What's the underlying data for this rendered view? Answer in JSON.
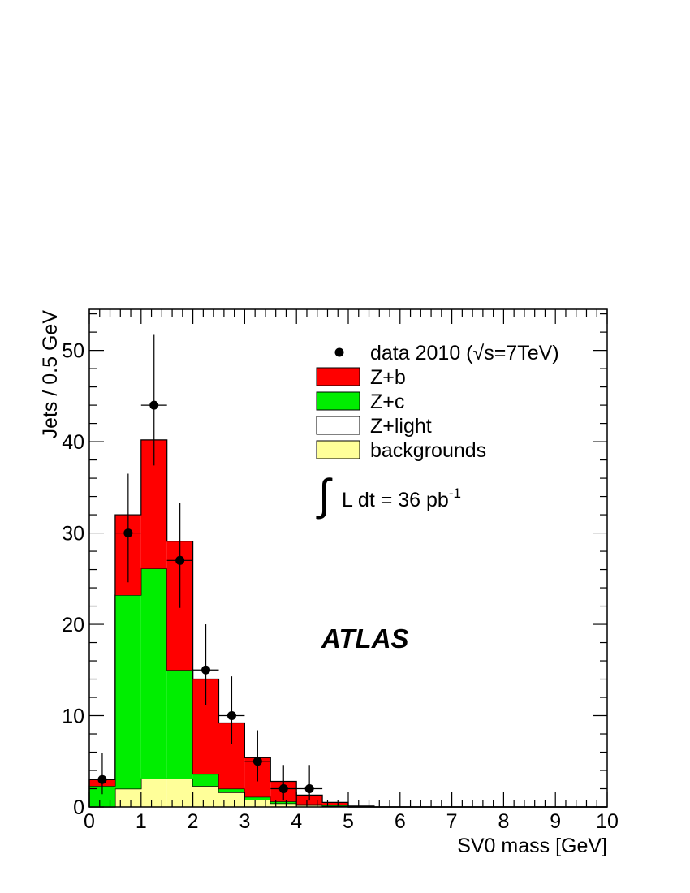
{
  "chart_data": {
    "type": "bar",
    "stacked": true,
    "xlabel": "SV0 mass [GeV]",
    "ylabel": "Jets / 0.5 GeV",
    "xlim": [
      0,
      10
    ],
    "ylim": [
      0,
      54.5
    ],
    "x_ticks": [
      "0",
      "1",
      "2",
      "3",
      "4",
      "5",
      "6",
      "7",
      "8",
      "9",
      "10"
    ],
    "y_ticks": [
      "0",
      "10",
      "20",
      "30",
      "40",
      "50"
    ],
    "bin_width": 0.5,
    "bin_edges": [
      0,
      0.5,
      1,
      1.5,
      2,
      2.5,
      3,
      3.5,
      4,
      4.5,
      5,
      5.5,
      6,
      6.5,
      7,
      7.5,
      8,
      8.5,
      9,
      9.5,
      10
    ],
    "colors": {
      "zb": "#ff0000",
      "zc": "#00ee00",
      "zlight": "#ffffff",
      "bkg": "#ffff99",
      "data": "#000000"
    },
    "series": [
      {
        "key": "bkg",
        "name": "backgrounds",
        "values": [
          0,
          2.0,
          3.1,
          3.1,
          2.3,
          1.6,
          0.8,
          0.4,
          0.2,
          0.1,
          0,
          0,
          0,
          0,
          0,
          0,
          0,
          0,
          0,
          0
        ]
      },
      {
        "key": "zlight",
        "name": "Z+light",
        "values": [
          0,
          0,
          0,
          0,
          0,
          0,
          0,
          0,
          0,
          0,
          0,
          0,
          0,
          0,
          0,
          0,
          0,
          0,
          0,
          0
        ]
      },
      {
        "key": "zc",
        "name": "Z+c",
        "values": [
          2.3,
          21.2,
          23.0,
          11.9,
          1.3,
          0.4,
          0.3,
          0.2,
          0.1,
          0.1,
          0,
          0,
          0,
          0,
          0,
          0,
          0,
          0,
          0,
          0
        ]
      },
      {
        "key": "zb",
        "name": "Z+b",
        "values": [
          0.7,
          8.8,
          14.1,
          14.1,
          10.4,
          7.2,
          4.3,
          2.2,
          1.0,
          0.3,
          0.1,
          0,
          0,
          0,
          0,
          0,
          0,
          0,
          0,
          0
        ]
      }
    ],
    "data_points": {
      "name": "data 2010",
      "x": [
        0.25,
        0.75,
        1.25,
        1.75,
        2.25,
        2.75,
        3.25,
        3.75,
        4.25
      ],
      "y": [
        3,
        30,
        44,
        27,
        15,
        10,
        5,
        2,
        2
      ],
      "err_low": [
        1.6,
        5.4,
        6.6,
        5.2,
        3.8,
        3.1,
        2.2,
        1.3,
        1.3
      ],
      "err_high": [
        2.9,
        6.5,
        7.7,
        6.3,
        5.0,
        4.3,
        3.4,
        2.6,
        2.6
      ]
    },
    "legend": {
      "placement": "top-right",
      "data_label": "data 2010 (",
      "data_label_sqrt": "√",
      "data_label_tail": "s=7TeV)",
      "entries": [
        {
          "key": "zb",
          "label": "Z+b"
        },
        {
          "key": "zc",
          "label": "Z+c"
        },
        {
          "key": "zlight",
          "label": "Z+light"
        },
        {
          "key": "bkg",
          "label": "backgrounds"
        }
      ]
    },
    "annotations": {
      "lumi_integral": "∫",
      "lumi_text": "L dt = 36 pb",
      "lumi_sup": "-1",
      "experiment": "ATLAS"
    }
  }
}
